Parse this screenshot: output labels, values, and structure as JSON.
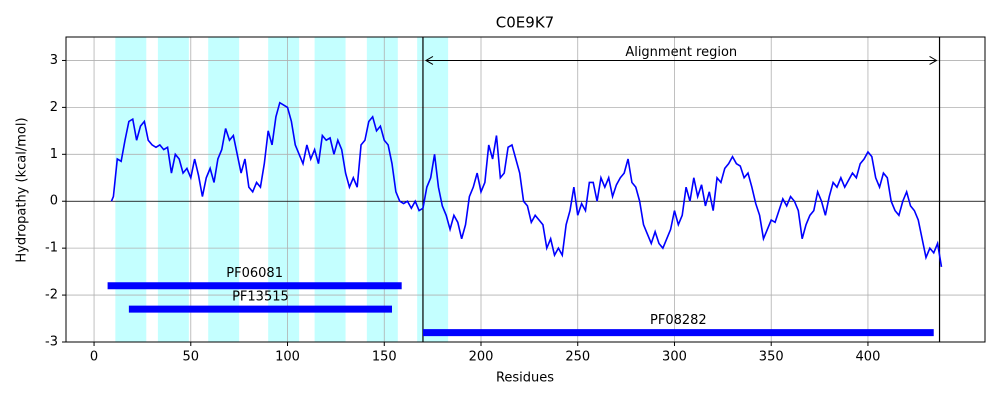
{
  "chart_data": {
    "type": "line",
    "title": "C0E9K7",
    "xlabel": "Residues",
    "ylabel": "Hydropathy (kcal/mol)",
    "xlim": [
      -14.5,
      460.5
    ],
    "ylim": [
      -3,
      3.5
    ],
    "xticks": [
      0,
      50,
      100,
      150,
      200,
      250,
      300,
      350,
      400
    ],
    "yticks": [
      -3,
      -2,
      -1,
      0,
      1,
      2,
      3
    ],
    "grid": true,
    "hline": 0,
    "span_color": "#c4ffff",
    "spans": [
      [
        11,
        27
      ],
      [
        33,
        49
      ],
      [
        59,
        75
      ],
      [
        90,
        106
      ],
      [
        114,
        130
      ],
      [
        141,
        157
      ],
      [
        167,
        183
      ]
    ],
    "vlines": [
      170,
      437
    ],
    "annotation": {
      "text": "Alignment region",
      "x": [
        170,
        437
      ],
      "y": 3
    },
    "domains": [
      {
        "name": "PF06081",
        "start": 7,
        "end": 159,
        "y": -1.8,
        "color": "#0000ff"
      },
      {
        "name": "PF13515",
        "start": 18,
        "end": 154,
        "y": -2.3,
        "color": "#0000ff"
      },
      {
        "name": "PF08282",
        "start": 170,
        "end": 434,
        "y": -2.8,
        "color": "#0000ff"
      }
    ],
    "series": [
      {
        "color": "#0000ff",
        "x": [
          9,
          10,
          12,
          14,
          16,
          18,
          20,
          22,
          24,
          26,
          28,
          30,
          32,
          34,
          36,
          38,
          40,
          42,
          44,
          46,
          48,
          50,
          52,
          54,
          56,
          58,
          60,
          62,
          64,
          66,
          68,
          70,
          72,
          74,
          76,
          78,
          80,
          82,
          84,
          86,
          88,
          90,
          92,
          94,
          96,
          98,
          100,
          102,
          104,
          106,
          108,
          110,
          112,
          114,
          116,
          118,
          120,
          122,
          124,
          126,
          128,
          130,
          132,
          134,
          136,
          138,
          140,
          142,
          144,
          146,
          148,
          150,
          152,
          154,
          156,
          158,
          160,
          162,
          164,
          166,
          168,
          170,
          172,
          174,
          176,
          178,
          180,
          182,
          184,
          186,
          188,
          190,
          192,
          194,
          196,
          198,
          200,
          202,
          204,
          206,
          208,
          210,
          212,
          214,
          216,
          218,
          220,
          222,
          224,
          226,
          228,
          230,
          232,
          234,
          236,
          238,
          240,
          242,
          244,
          246,
          248,
          250,
          252,
          254,
          256,
          258,
          260,
          262,
          264,
          266,
          268,
          270,
          272,
          274,
          276,
          278,
          280,
          282,
          284,
          286,
          288,
          290,
          292,
          294,
          296,
          298,
          300,
          302,
          304,
          306,
          308,
          310,
          312,
          314,
          316,
          318,
          320,
          322,
          324,
          326,
          328,
          330,
          332,
          334,
          336,
          338,
          340,
          342,
          344,
          346,
          348,
          350,
          352,
          354,
          356,
          358,
          360,
          362,
          364,
          366,
          368,
          370,
          372,
          374,
          376,
          378,
          380,
          382,
          384,
          386,
          388,
          390,
          392,
          394,
          396,
          398,
          400,
          402,
          404,
          406,
          408,
          410,
          412,
          414,
          416,
          418,
          420,
          422,
          424,
          426,
          428,
          430,
          432,
          434,
          436,
          438
        ],
        "values": [
          0,
          0.1,
          0.9,
          0.85,
          1.3,
          1.7,
          1.75,
          1.3,
          1.6,
          1.7,
          1.3,
          1.2,
          1.15,
          1.2,
          1.1,
          1.15,
          0.6,
          1.0,
          0.9,
          0.6,
          0.7,
          0.5,
          0.9,
          0.55,
          0.1,
          0.5,
          0.7,
          0.4,
          0.9,
          1.1,
          1.55,
          1.3,
          1.4,
          1.0,
          0.6,
          0.9,
          0.3,
          0.2,
          0.4,
          0.3,
          0.8,
          1.5,
          1.2,
          1.8,
          2.1,
          2.05,
          2.0,
          1.7,
          1.2,
          1.0,
          0.8,
          1.2,
          0.9,
          1.1,
          0.8,
          1.4,
          1.3,
          1.35,
          1.0,
          1.3,
          1.1,
          0.6,
          0.3,
          0.5,
          0.3,
          1.2,
          1.3,
          1.7,
          1.8,
          1.5,
          1.6,
          1.3,
          1.2,
          0.8,
          0.2,
          0.0,
          -0.05,
          0.0,
          -0.15,
          0.0,
          -0.2,
          -0.15,
          0.3,
          0.5,
          1.0,
          0.3,
          -0.1,
          -0.3,
          -0.6,
          -0.3,
          -0.45,
          -0.8,
          -0.5,
          0.1,
          0.3,
          0.6,
          0.2,
          0.4,
          1.2,
          0.9,
          1.4,
          0.5,
          0.6,
          1.15,
          1.2,
          0.9,
          0.6,
          0,
          -0.1,
          -0.45,
          -0.3,
          -0.4,
          -0.5,
          -1.0,
          -0.8,
          -1.15,
          -1.0,
          -1.15,
          -0.5,
          -0.2,
          0.3,
          -0.3,
          -0.05,
          -0.2,
          0.4,
          0.4,
          0.0,
          0.5,
          0.3,
          0.5,
          0.1,
          0.35,
          0.5,
          0.6,
          0.9,
          0.4,
          0.3,
          0,
          -0.5,
          -0.7,
          -0.9,
          -0.65,
          -0.9,
          -1.0,
          -0.8,
          -0.6,
          -0.2,
          -0.5,
          -0.3,
          0.3,
          0.0,
          0.5,
          0.1,
          0.35,
          -0.1,
          0.2,
          -0.2,
          0.5,
          0.4,
          0.7,
          0.8,
          0.95,
          0.8,
          0.75,
          0.5,
          0.6,
          0.3,
          -0.05,
          -0.3,
          -0.8,
          -0.6,
          -0.4,
          -0.45,
          -0.2,
          0.05,
          -0.1,
          0.1,
          0.0,
          -0.2,
          -0.8,
          -0.5,
          -0.3,
          -0.2,
          0.2,
          0,
          -0.3,
          0.1,
          0.4,
          0.3,
          0.5,
          0.3,
          0.45,
          0.6,
          0.5,
          0.8,
          0.9,
          1.05,
          0.95,
          0.5,
          0.3,
          0.6,
          0.5,
          0.0,
          -0.2,
          -0.3,
          0.0,
          0.2,
          -0.1,
          -0.2,
          -0.4,
          -0.8,
          -1.2,
          -1.0,
          -1.1,
          -0.9,
          -1.4
        ]
      }
    ]
  }
}
